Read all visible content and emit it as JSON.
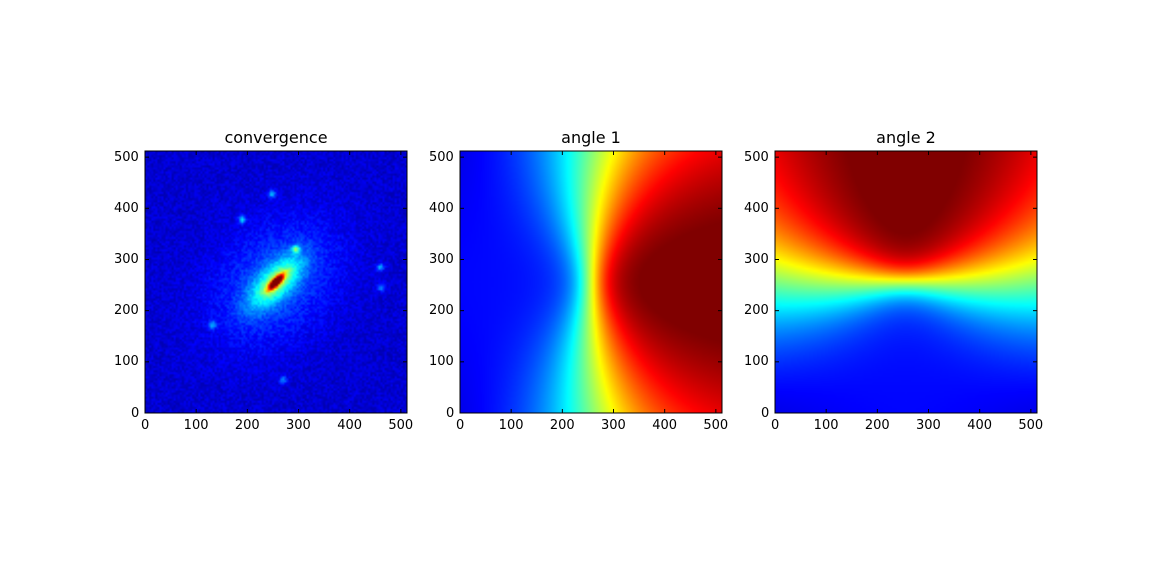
{
  "chart_data": [
    {
      "type": "heatmap",
      "title": "convergence",
      "xlabel": "",
      "ylabel": "",
      "xlim": [
        0,
        512
      ],
      "ylim": [
        0,
        512
      ],
      "xticks": [
        0,
        100,
        200,
        300,
        400,
        500
      ],
      "yticks": [
        0,
        100,
        200,
        300,
        400,
        500
      ],
      "colormap": "jet",
      "grid": false,
      "features": {
        "background_level": 0.08,
        "peak": {
          "x": 256,
          "y": 256,
          "level": 1.0
        },
        "elongation_angle_deg": 45,
        "clumps": [
          {
            "x": 295,
            "y": 320,
            "level": 0.45
          },
          {
            "x": 190,
            "y": 378,
            "level": 0.35
          },
          {
            "x": 248,
            "y": 428,
            "level": 0.32
          },
          {
            "x": 132,
            "y": 172,
            "level": 0.3
          },
          {
            "x": 460,
            "y": 285,
            "level": 0.3
          },
          {
            "x": 462,
            "y": 245,
            "level": 0.25
          },
          {
            "x": 270,
            "y": 65,
            "level": 0.25
          }
        ]
      }
    },
    {
      "type": "heatmap",
      "title": "angle 1",
      "xlabel": "",
      "ylabel": "",
      "xlim": [
        0,
        512
      ],
      "ylim": [
        0,
        512
      ],
      "xticks": [
        0,
        100,
        200,
        300,
        400,
        500
      ],
      "yticks": [
        0,
        100,
        200,
        300,
        400,
        500
      ],
      "colormap": "jet",
      "grid": false,
      "features": {
        "minimum": {
          "x": 170,
          "y": 250
        },
        "maximum": {
          "x": 340,
          "y": 250
        },
        "saddle": {
          "x": 256,
          "y": 256
        }
      }
    },
    {
      "type": "heatmap",
      "title": "angle 2",
      "xlabel": "",
      "ylabel": "",
      "xlim": [
        0,
        512
      ],
      "ylim": [
        0,
        512
      ],
      "xticks": [
        0,
        100,
        200,
        300,
        400,
        500
      ],
      "yticks": [
        0,
        100,
        200,
        300,
        400,
        500
      ],
      "colormap": "jet",
      "grid": false,
      "features": {
        "minimum": {
          "x": 256,
          "y": 160
        },
        "maximum": {
          "x": 270,
          "y": 330
        },
        "saddle": {
          "x": 256,
          "y": 256
        }
      }
    }
  ]
}
